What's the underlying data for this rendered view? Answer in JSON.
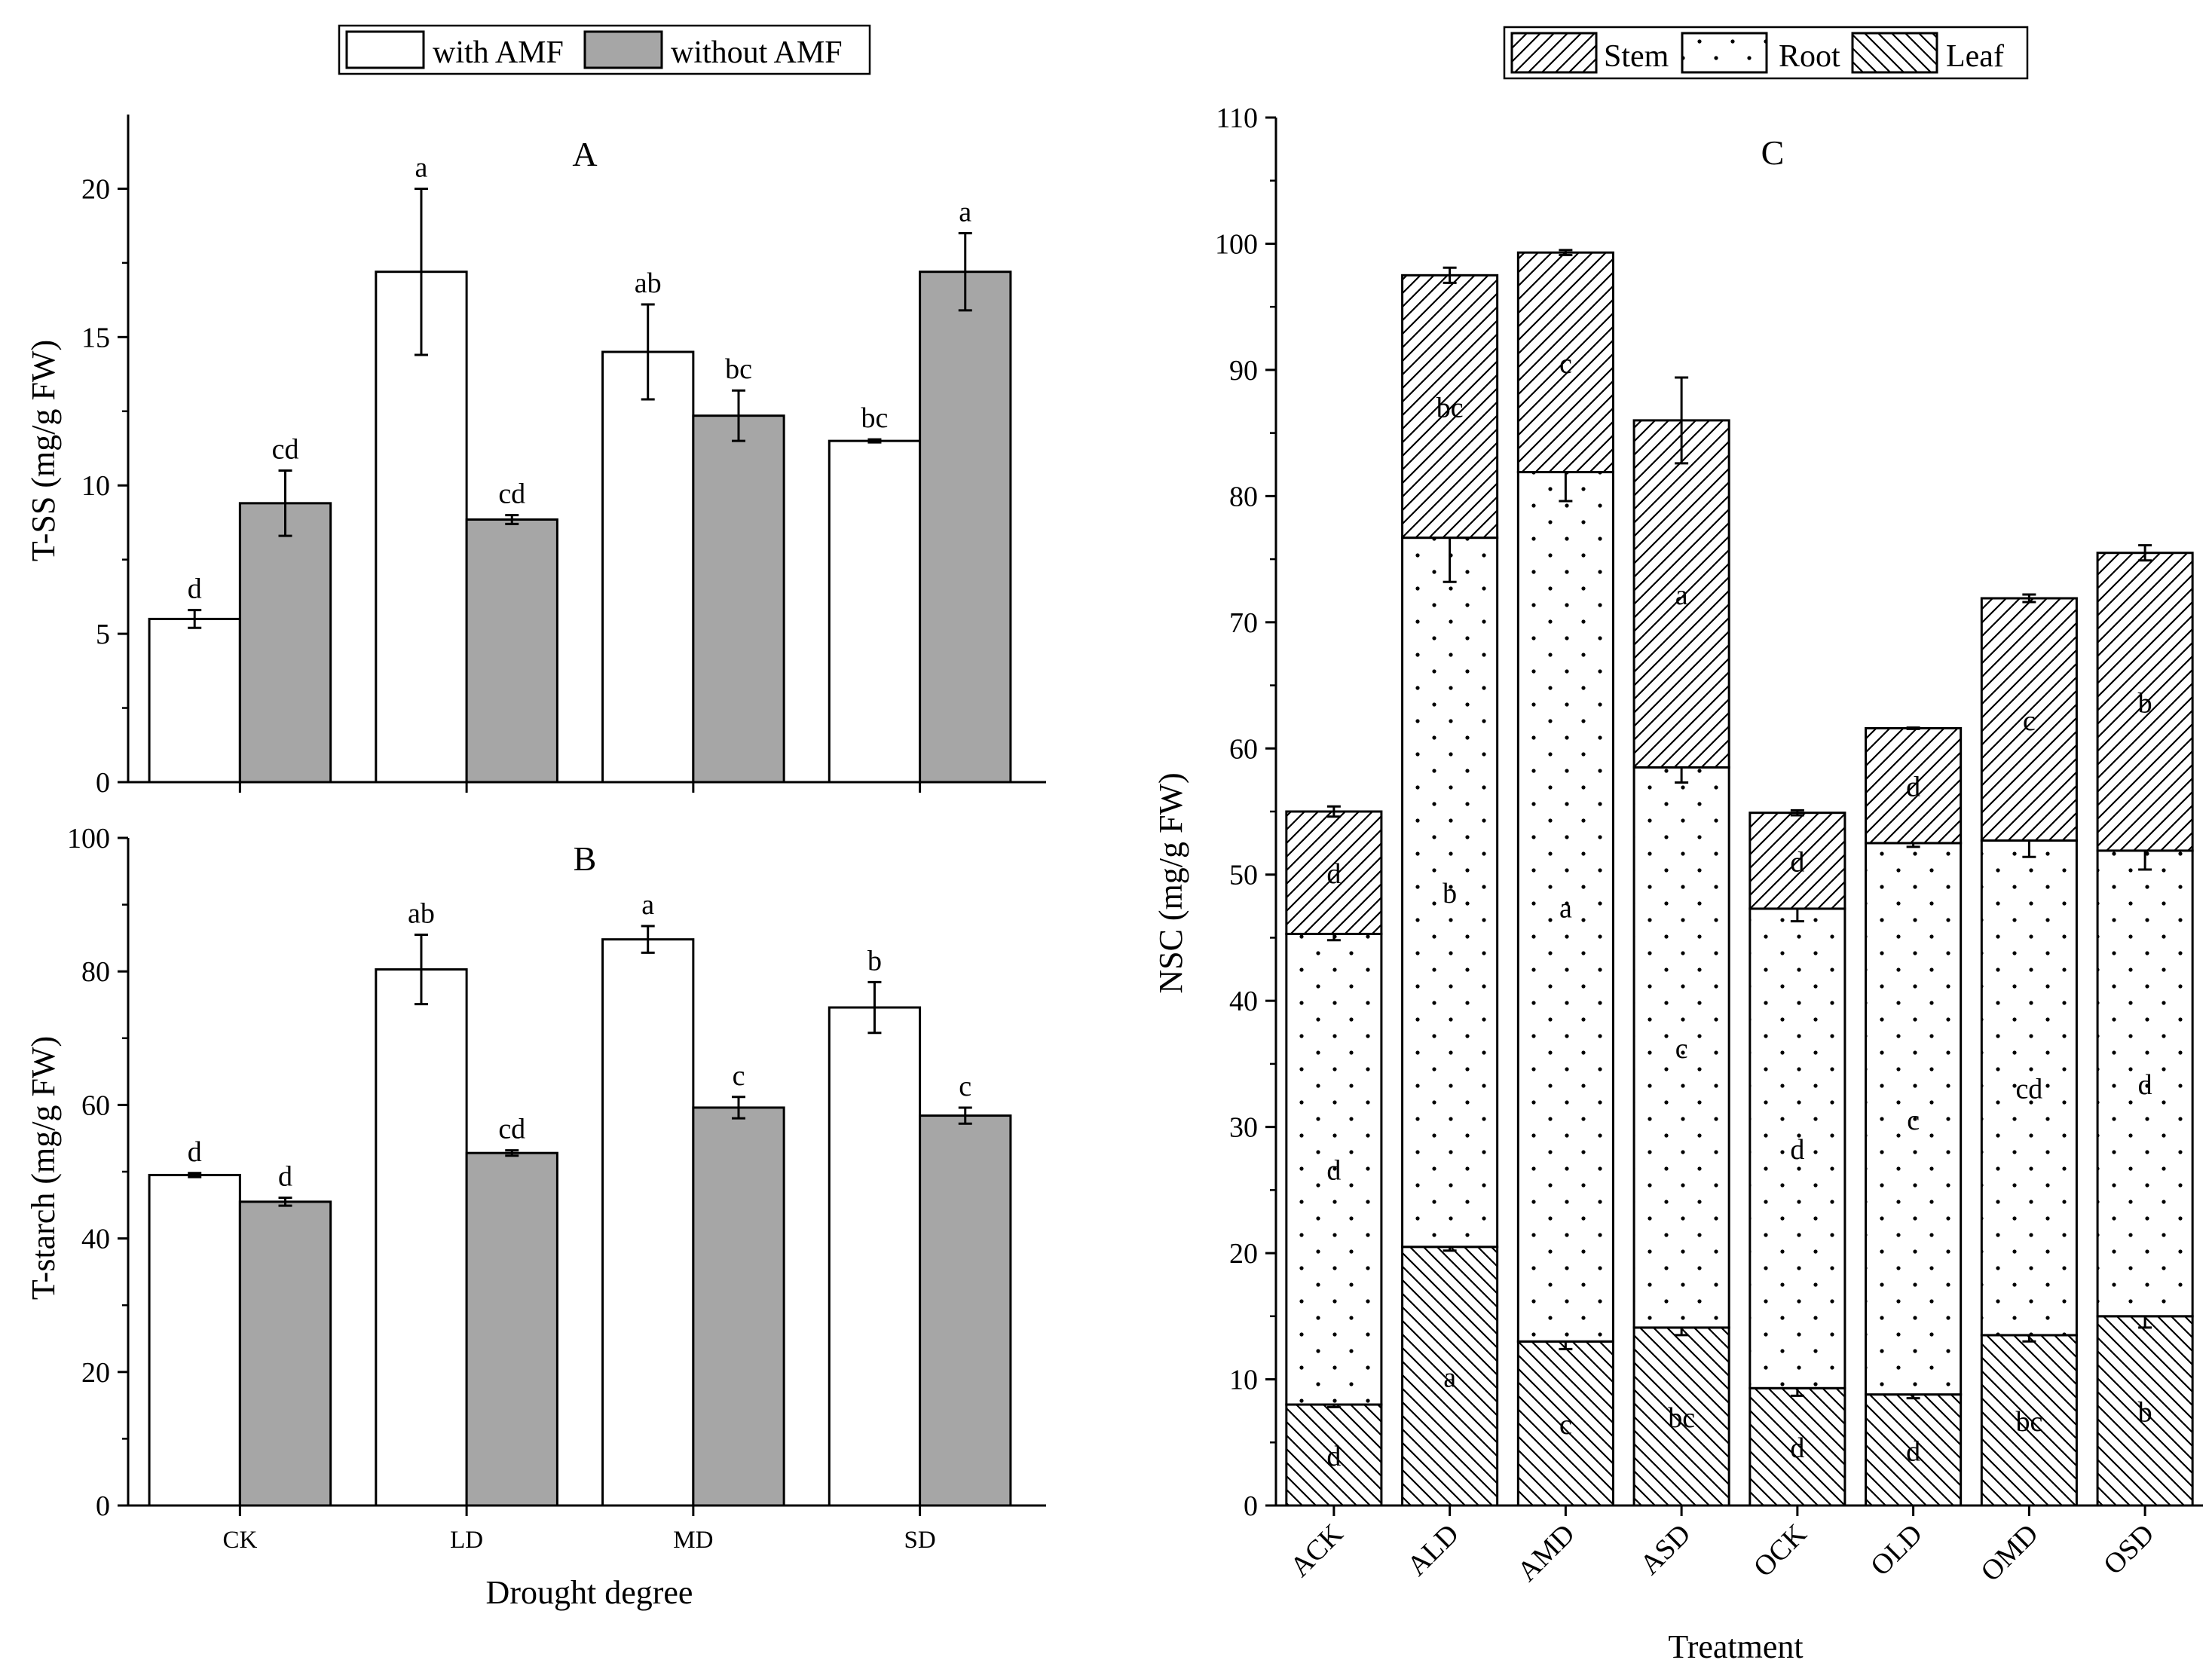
{
  "chart_data": [
    {
      "id": "A",
      "type": "bar",
      "panel_label": "A",
      "title": "",
      "xlabel": "",
      "ylabel": "T-SS (mg/g  FW)",
      "ylim": [
        0,
        22.5
      ],
      "yticks": [
        0,
        5,
        10,
        15,
        20
      ],
      "categories": [
        "CK",
        "LD",
        "MD",
        "SD"
      ],
      "show_category_labels": false,
      "legend": {
        "position": "top",
        "entries": [
          "with AMF",
          "without AMF"
        ]
      },
      "series": [
        {
          "name": "with AMF",
          "color": "#ffffff",
          "values": [
            5.5,
            17.2,
            14.5,
            11.5
          ],
          "errors": [
            0.3,
            2.8,
            1.6,
            0.05
          ],
          "letters": [
            "d",
            "a",
            "ab",
            "bc"
          ]
        },
        {
          "name": "without AMF",
          "color": "#a6a6a6",
          "values": [
            9.4,
            8.85,
            12.35,
            17.2
          ],
          "errors": [
            1.1,
            0.15,
            0.85,
            1.3
          ],
          "letters": [
            "cd",
            "cd",
            "bc",
            "a"
          ]
        }
      ]
    },
    {
      "id": "B",
      "type": "bar",
      "panel_label": "B",
      "title": "",
      "xlabel": "Drought degree",
      "ylabel": "T-starch (mg/g  FW)",
      "ylim": [
        0,
        100
      ],
      "yticks": [
        0,
        20,
        40,
        60,
        80,
        100
      ],
      "categories": [
        "CK",
        "LD",
        "MD",
        "SD"
      ],
      "show_category_labels": true,
      "series": [
        {
          "name": "with AMF",
          "color": "#ffffff",
          "values": [
            49.5,
            80.3,
            84.8,
            74.6
          ],
          "errors": [
            0.3,
            5.2,
            2.0,
            3.8
          ],
          "letters": [
            "d",
            "ab",
            "a",
            "b"
          ]
        },
        {
          "name": "without AMF",
          "color": "#a6a6a6",
          "values": [
            45.5,
            52.8,
            59.6,
            58.4
          ],
          "errors": [
            0.6,
            0.4,
            1.6,
            1.2
          ],
          "letters": [
            "d",
            "cd",
            "c",
            "c"
          ]
        }
      ]
    },
    {
      "id": "C",
      "type": "stacked_bar",
      "panel_label": "C",
      "title": "",
      "xlabel": "Treatment",
      "ylabel": "NSC (mg/g FW)",
      "ylim": [
        0,
        110
      ],
      "yticks": [
        0,
        10,
        20,
        30,
        40,
        50,
        60,
        70,
        80,
        90,
        100,
        110
      ],
      "categories": [
        "ACK",
        "ALD",
        "AMD",
        "ASD",
        "OCK",
        "OLD",
        "OMD",
        "OSD"
      ],
      "legend": {
        "position": "top",
        "entries": [
          "Stem",
          "Root",
          "Leaf"
        ]
      },
      "stack_order": [
        "Leaf",
        "Root",
        "Stem"
      ],
      "series": [
        {
          "name": "Leaf",
          "pattern": "back-hatch",
          "values": [
            8.0,
            20.5,
            13.0,
            14.1,
            9.3,
            8.8,
            13.5,
            15.0
          ],
          "errors": [
            0.2,
            0.3,
            0.6,
            0.6,
            0.6,
            0.3,
            0.5,
            0.9
          ],
          "letters": [
            "d",
            "a",
            "c",
            "bc",
            "d",
            "d",
            "bc",
            "b"
          ]
        },
        {
          "name": "Root",
          "pattern": "dots",
          "values": [
            37.3,
            56.2,
            68.9,
            44.4,
            38.0,
            43.7,
            39.2,
            36.9
          ],
          "errors": [
            0.5,
            3.5,
            2.3,
            1.2,
            1.0,
            0.3,
            1.3,
            1.5
          ],
          "letters": [
            "d",
            "b",
            "a",
            "c",
            "d",
            "c",
            "cd",
            "d"
          ]
        },
        {
          "name": "Stem",
          "pattern": "forward-hatch",
          "values": [
            9.7,
            20.8,
            17.4,
            27.5,
            7.6,
            9.1,
            19.2,
            23.6
          ],
          "errors": [
            0.4,
            0.6,
            0.2,
            3.4,
            0.2,
            0.05,
            0.3,
            0.6
          ],
          "letters": [
            "d",
            "bc",
            "c",
            "a",
            "d",
            "d",
            "c",
            "b"
          ]
        }
      ]
    }
  ]
}
